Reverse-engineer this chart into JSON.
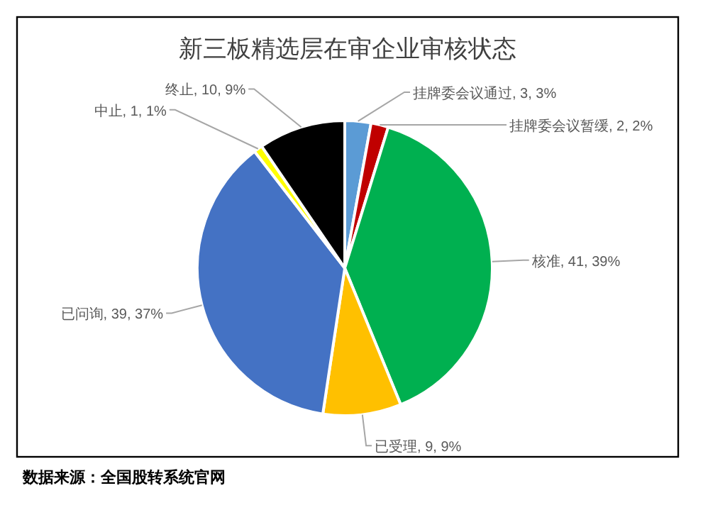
{
  "chart_data": {
    "type": "pie",
    "title": "新三板精选层在审企业审核状态",
    "categories": [
      "挂牌委会议通过",
      "挂牌委会议暂缓",
      "核准",
      "已受理",
      "已问询",
      "中止",
      "终止"
    ],
    "values": [
      3,
      2,
      41,
      9,
      39,
      1,
      10
    ],
    "value_labels": [
      "3, 3%",
      "2, 2%",
      "41, 39%",
      "9, 9%",
      "39, 37%",
      "1, 1%",
      "10, 9%"
    ],
    "colors": [
      "#5b9bd5",
      "#c00000",
      "#00b050",
      "#ffc000",
      "#4472c4",
      "#ffff00",
      "#000000"
    ],
    "annotations": [
      "数据来源：全国股转系统官网"
    ]
  }
}
